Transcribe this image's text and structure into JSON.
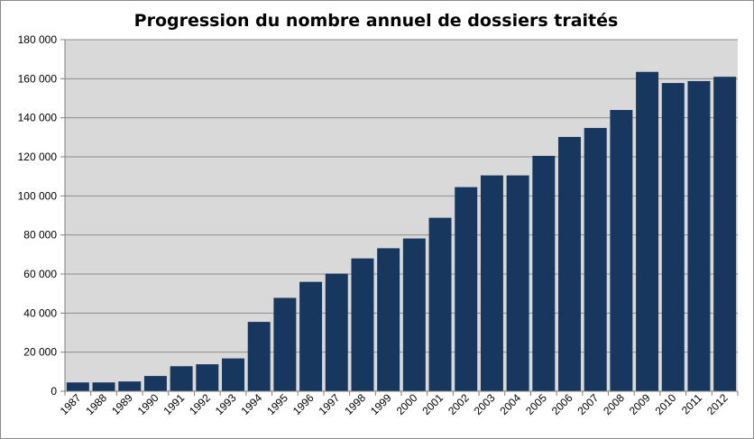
{
  "chart_data": {
    "type": "bar",
    "title": "Progression du nombre annuel de dossiers traités",
    "xlabel": "",
    "ylabel": "",
    "categories": [
      "1987",
      "1988",
      "1989",
      "1990",
      "1991",
      "1992",
      "1993",
      "1994",
      "1995",
      "1996",
      "1997",
      "1998",
      "1999",
      "2000",
      "2001",
      "2002",
      "2003",
      "2004",
      "2005",
      "2006",
      "2007",
      "2008",
      "2009",
      "2010",
      "2011",
      "2012"
    ],
    "values": [
      4500,
      4500,
      5000,
      7800,
      12800,
      13800,
      16800,
      35500,
      47800,
      56000,
      60200,
      68000,
      73200,
      78200,
      88800,
      104500,
      110500,
      110500,
      120500,
      130200,
      134800,
      144000,
      163500,
      157800,
      158800,
      161000
    ],
    "ylim": [
      0,
      180000
    ],
    "yticks": [
      0,
      20000,
      40000,
      60000,
      80000,
      100000,
      120000,
      140000,
      160000,
      180000
    ],
    "ytick_labels": [
      "0",
      "20 000",
      "40 000",
      "60 000",
      "80 000",
      "100 000",
      "120 000",
      "140 000",
      "160 000",
      "180 000"
    ],
    "grid": true,
    "legend": "none",
    "colors": {
      "bar": "#17375e",
      "plot_background": "#d9d9d9",
      "gridline": "#8c8c8c",
      "axis": "#7f7f7f"
    }
  }
}
